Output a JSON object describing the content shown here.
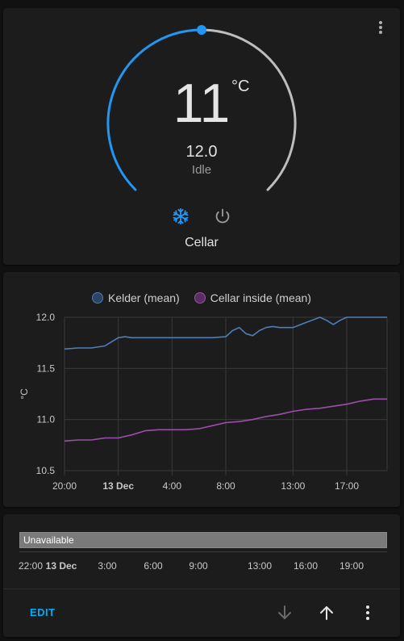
{
  "thermostat": {
    "current_temp": "11",
    "unit": "°C",
    "target_temp": "12.0",
    "hvac_action": "Idle",
    "name": "Cellar",
    "colors": {
      "active_arc": "#2196f3",
      "inactive_arc": "#bdbdbd",
      "cool_mode": "#2196f3",
      "off_mode": "#9e9e9e"
    },
    "icons": [
      "snowflake-icon",
      "power-icon",
      "more-vert-icon"
    ]
  },
  "history": {
    "legend": [
      "Kelder (mean)",
      "Cellar inside (mean)"
    ],
    "y_axis_unit": "°C"
  },
  "chart_data": {
    "type": "line",
    "x_ticks": [
      "20:00",
      "13 Dec",
      "4:00",
      "8:00",
      "13:00",
      "17:00"
    ],
    "y_ticks": [
      "12.0",
      "11.5",
      "11.0",
      "10.5"
    ],
    "ylabel": "°C",
    "ylim": [
      10.5,
      12.0
    ],
    "xlim": [
      0,
      24
    ],
    "grid": true,
    "legend_position": "top",
    "series": [
      {
        "name": "Kelder (mean)",
        "color": "#4d7eb8",
        "points": [
          [
            0,
            11.69
          ],
          [
            1,
            11.7
          ],
          [
            2,
            11.7
          ],
          [
            3,
            11.72
          ],
          [
            3.5,
            11.76
          ],
          [
            4,
            11.8
          ],
          [
            4.5,
            11.81
          ],
          [
            5,
            11.8
          ],
          [
            6,
            11.8
          ],
          [
            7,
            11.8
          ],
          [
            8,
            11.8
          ],
          [
            9,
            11.8
          ],
          [
            10,
            11.8
          ],
          [
            11,
            11.8
          ],
          [
            12,
            11.81
          ],
          [
            12.5,
            11.87
          ],
          [
            13,
            11.9
          ],
          [
            13.5,
            11.84
          ],
          [
            14,
            11.82
          ],
          [
            14.5,
            11.87
          ],
          [
            15,
            11.9
          ],
          [
            15.5,
            11.91
          ],
          [
            16,
            11.9
          ],
          [
            17,
            11.9
          ],
          [
            18,
            11.95
          ],
          [
            19,
            12.0
          ],
          [
            19.5,
            11.97
          ],
          [
            20,
            11.93
          ],
          [
            20.5,
            11.97
          ],
          [
            21,
            12.0
          ],
          [
            22,
            12.0
          ],
          [
            23,
            12.0
          ],
          [
            24,
            12.0
          ]
        ]
      },
      {
        "name": "Cellar inside (mean)",
        "color": "#9c4fa8",
        "points": [
          [
            0,
            10.79
          ],
          [
            1,
            10.8
          ],
          [
            2,
            10.8
          ],
          [
            3,
            10.82
          ],
          [
            4,
            10.82
          ],
          [
            5,
            10.85
          ],
          [
            6,
            10.89
          ],
          [
            7,
            10.9
          ],
          [
            8,
            10.9
          ],
          [
            9,
            10.9
          ],
          [
            10,
            10.91
          ],
          [
            11,
            10.94
          ],
          [
            12,
            10.97
          ],
          [
            13,
            10.98
          ],
          [
            14,
            11.0
          ],
          [
            15,
            11.03
          ],
          [
            16,
            11.05
          ],
          [
            17,
            11.08
          ],
          [
            18,
            11.1
          ],
          [
            19,
            11.11
          ],
          [
            20,
            11.13
          ],
          [
            21,
            11.15
          ],
          [
            22,
            11.18
          ],
          [
            23,
            11.2
          ],
          [
            24,
            11.2
          ]
        ]
      }
    ]
  },
  "timeline": {
    "state_label": "Unavailable",
    "ticks": [
      "22:00",
      "13 Dec",
      "3:00",
      "6:00",
      "9:00",
      "13:00",
      "16:00",
      "19:00"
    ],
    "bar_color": "#7a7a7a"
  },
  "footer": {
    "edit_label": "EDIT",
    "icons": [
      "arrow-down-icon",
      "arrow-up-icon",
      "more-vert-icon"
    ]
  }
}
